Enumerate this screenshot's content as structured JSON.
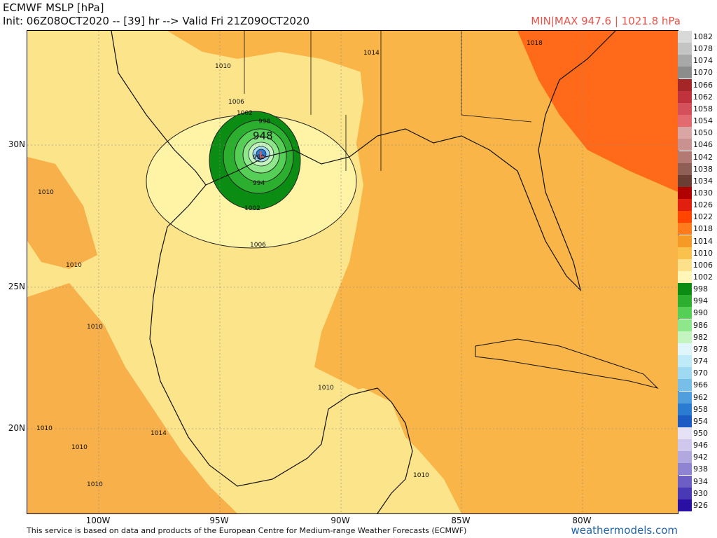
{
  "header": {
    "title": "ECMWF MSLP [hPa]",
    "init": "Init: 06Z08OCT2020 -- [39] hr --> Valid Fri 21Z09OCT2020",
    "minmax": "MIN|MAX 947.6 | 1021.8 hPa"
  },
  "map": {
    "lat_labels": [
      "30N",
      "25N",
      "20N"
    ],
    "lon_labels": [
      "100W",
      "95W",
      "90W",
      "85W",
      "80W"
    ],
    "contour_labels": [
      "1014",
      "1018",
      "1010",
      "1006",
      "1002",
      "998",
      "948",
      "990",
      "994",
      "1002",
      "1006",
      "1010",
      "1010",
      "1010",
      "1010",
      "1014",
      "1010",
      "1010",
      "1010",
      "1010"
    ],
    "low_marker": "L",
    "center_pressure": "948"
  },
  "legend": {
    "items": [
      {
        "label": "1082",
        "color": "#d9d9d9"
      },
      {
        "label": "1078",
        "color": "#c4c4c4"
      },
      {
        "label": "1074",
        "color": "#a8a8a8"
      },
      {
        "label": "1070",
        "color": "#8c8c8c"
      },
      {
        "label": "1066",
        "color": "#a52626"
      },
      {
        "label": "1062",
        "color": "#c0333c"
      },
      {
        "label": "1058",
        "color": "#d4505a"
      },
      {
        "label": "1054",
        "color": "#e36b70"
      },
      {
        "label": "1050",
        "color": "#d9a5a5"
      },
      {
        "label": "1046",
        "color": "#c99190"
      },
      {
        "label": "1042",
        "color": "#b27a72"
      },
      {
        "label": "1038",
        "color": "#8f5e55"
      },
      {
        "label": "1034",
        "color": "#6b3e33"
      },
      {
        "label": "1030",
        "color": "#b00000"
      },
      {
        "label": "1026",
        "color": "#e01f0f"
      },
      {
        "label": "1022",
        "color": "#ff4500"
      },
      {
        "label": "1018",
        "color": "#ff7b1c"
      },
      {
        "label": "1014",
        "color": "#f59a24"
      },
      {
        "label": "1010",
        "color": "#f9c24c"
      },
      {
        "label": "1006",
        "color": "#fde18a"
      },
      {
        "label": "1002",
        "color": "#fff6b8"
      },
      {
        "label": "998",
        "color": "#0b8d14"
      },
      {
        "label": "994",
        "color": "#2cae2e"
      },
      {
        "label": "990",
        "color": "#55cf55"
      },
      {
        "label": "986",
        "color": "#8ee88b"
      },
      {
        "label": "982",
        "color": "#c4f5c0"
      },
      {
        "label": "978",
        "color": "#dff6fb"
      },
      {
        "label": "974",
        "color": "#bfeaf7"
      },
      {
        "label": "970",
        "color": "#9fd9f2"
      },
      {
        "label": "966",
        "color": "#77bfe9"
      },
      {
        "label": "962",
        "color": "#4f9ede"
      },
      {
        "label": "958",
        "color": "#2a7bd2"
      },
      {
        "label": "954",
        "color": "#1a5cc4"
      },
      {
        "label": "950",
        "color": "#e6e2f5"
      },
      {
        "label": "946",
        "color": "#cfc8ec"
      },
      {
        "label": "942",
        "color": "#b1a8e0"
      },
      {
        "label": "938",
        "color": "#8f84d2"
      },
      {
        "label": "934",
        "color": "#6c5ec4"
      },
      {
        "label": "930",
        "color": "#4a39b5"
      },
      {
        "label": "926",
        "color": "#2a0fa3"
      }
    ]
  },
  "footer": {
    "disclaimer": "This service is based on data and products of the European Centre for Medium-range Weather Forecasts (ECMWF)",
    "brand": "weathermodels.com"
  }
}
